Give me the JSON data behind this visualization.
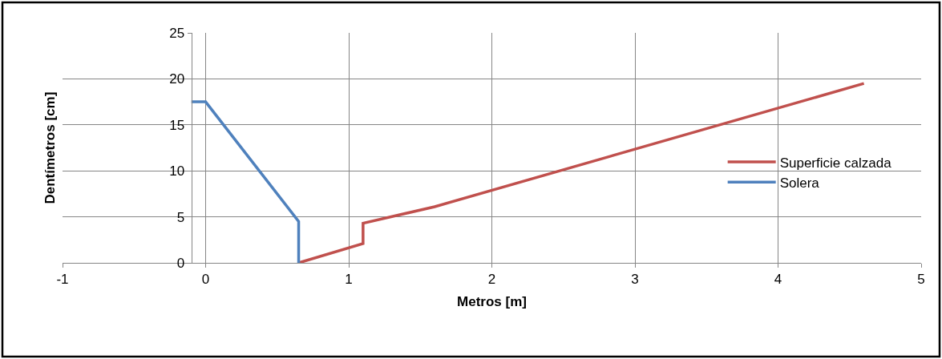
{
  "chart_data": {
    "type": "line",
    "xlabel": "Metros [m]",
    "ylabel": "Dentímetros [cm]",
    "xlim": [
      -1,
      5
    ],
    "xticks": [
      -1,
      0,
      1,
      2,
      3,
      4,
      5
    ],
    "ylim": [
      0,
      25
    ],
    "yticks": [
      0,
      5,
      10,
      15,
      20,
      25
    ],
    "grid": true,
    "legend": "right",
    "marker": "none",
    "line_style": "solid",
    "series": [
      {
        "name": "Superficie calzada",
        "color": "#c0504d",
        "x": [
          0.65,
          1.1,
          1.1,
          1.6,
          4.6
        ],
        "values": [
          0,
          2.1,
          4.3,
          6.1,
          19.5
        ]
      },
      {
        "name": "Solera",
        "color": "#4f81bd",
        "x": [
          -0.1,
          0,
          0.65,
          0.65
        ],
        "values": [
          17.5,
          17.5,
          4.5,
          0
        ]
      }
    ]
  }
}
